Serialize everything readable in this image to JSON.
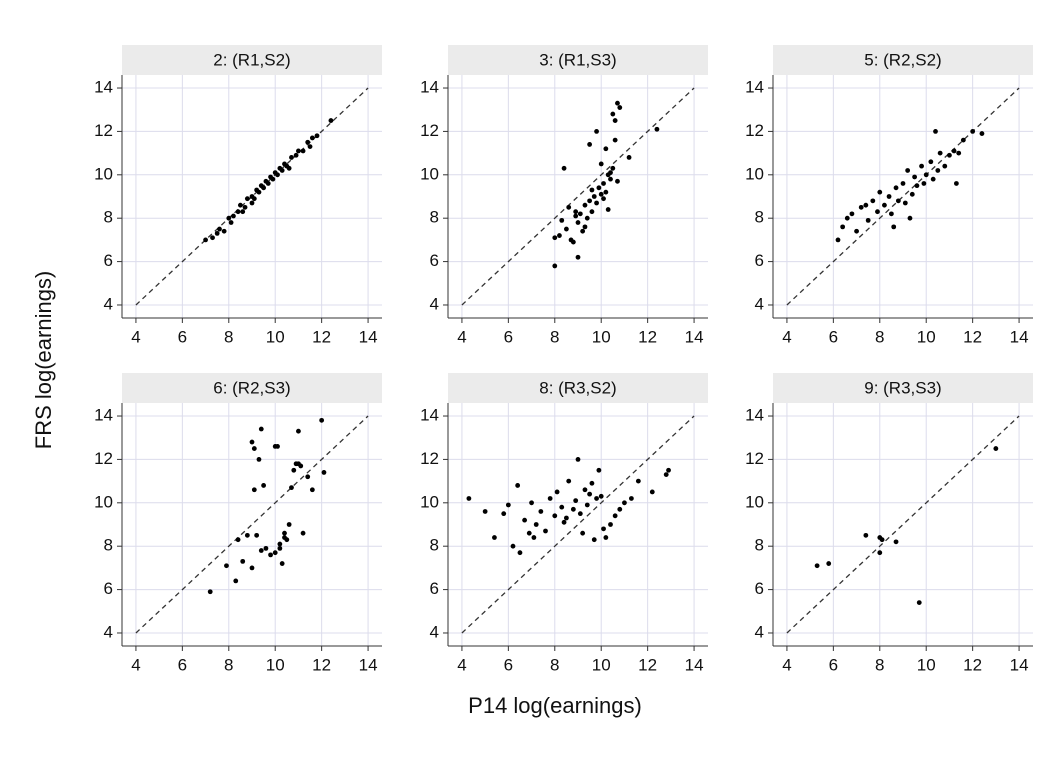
{
  "axis_titles": {
    "x": "P14 log(earnings)",
    "y": "FRS log(earnings)"
  },
  "chart_data": [
    {
      "type": "scatter",
      "title": "2: (R1,S2)",
      "color": "#000000",
      "x": [
        7.0,
        7.3,
        7.5,
        7.6,
        7.8,
        8.0,
        8.1,
        8.2,
        8.4,
        8.5,
        8.6,
        8.7,
        8.8,
        9.0,
        9.0,
        9.1,
        9.2,
        9.3,
        9.4,
        9.5,
        9.6,
        9.7,
        9.8,
        9.9,
        10.0,
        10.1,
        10.2,
        10.3,
        10.4,
        10.5,
        10.6,
        10.7,
        10.9,
        11.0,
        11.2,
        11.4,
        11.5,
        11.6,
        11.8,
        12.4
      ],
      "values": [
        7.0,
        7.1,
        7.3,
        7.5,
        7.4,
        8.0,
        7.8,
        8.1,
        8.3,
        8.6,
        8.3,
        8.5,
        8.9,
        9.0,
        8.7,
        8.9,
        9.3,
        9.2,
        9.5,
        9.4,
        9.7,
        9.6,
        9.9,
        9.8,
        10.1,
        10.0,
        10.3,
        10.2,
        10.5,
        10.4,
        10.3,
        10.8,
        10.9,
        11.1,
        11.1,
        11.5,
        11.3,
        11.7,
        11.8,
        12.5
      ],
      "xlim": [
        3.4,
        14.6
      ],
      "ylim": [
        3.4,
        14.6
      ],
      "xticks": [
        4,
        6,
        8,
        10,
        12,
        14
      ],
      "yticks": [
        4,
        6,
        8,
        10,
        12,
        14
      ],
      "grid": true,
      "reference_line": [
        4,
        14
      ]
    },
    {
      "type": "scatter",
      "title": "3: (R1,S3)",
      "color": "#000000",
      "x": [
        8.0,
        8.2,
        8.3,
        8.5,
        8.6,
        8.7,
        8.8,
        8.9,
        9.0,
        9.1,
        9.2,
        9.3,
        9.4,
        9.5,
        9.6,
        9.7,
        9.8,
        9.9,
        10.0,
        10.1,
        10.2,
        10.3,
        10.4,
        10.5,
        10.6,
        10.7,
        10.8,
        11.2,
        12.4,
        9.5,
        9.8,
        10.0,
        10.2,
        10.5,
        10.6,
        10.7,
        10.4,
        8.4,
        9.0,
        9.3,
        10.1,
        10.3,
        8.0,
        8.9,
        9.6
      ],
      "values": [
        5.8,
        7.2,
        7.9,
        7.5,
        8.5,
        7.0,
        6.9,
        8.1,
        7.8,
        8.2,
        7.4,
        8.6,
        8.0,
        8.8,
        8.3,
        9.0,
        8.7,
        9.4,
        9.1,
        9.6,
        9.2,
        10.0,
        9.8,
        10.3,
        12.5,
        13.3,
        13.1,
        10.8,
        12.1,
        11.4,
        12.0,
        10.5,
        11.2,
        12.8,
        11.6,
        9.7,
        10.1,
        10.3,
        6.2,
        7.6,
        8.9,
        8.4,
        7.1,
        8.3,
        9.3
      ],
      "xlim": [
        3.4,
        14.6
      ],
      "ylim": [
        3.4,
        14.6
      ],
      "xticks": [
        4,
        6,
        8,
        10,
        12,
        14
      ],
      "yticks": [
        4,
        6,
        8,
        10,
        12,
        14
      ],
      "grid": true,
      "reference_line": [
        4,
        14
      ]
    },
    {
      "type": "scatter",
      "title": "5: (R2,S2)",
      "color": "#000000",
      "x": [
        6.2,
        6.4,
        6.6,
        6.8,
        7.0,
        7.2,
        7.4,
        7.5,
        7.7,
        7.9,
        8.0,
        8.2,
        8.4,
        8.5,
        8.7,
        8.8,
        9.0,
        9.1,
        9.2,
        9.4,
        9.5,
        9.6,
        9.8,
        9.9,
        10.0,
        10.2,
        10.3,
        10.5,
        10.6,
        10.8,
        11.0,
        11.2,
        11.4,
        11.6,
        12.0,
        12.4,
        8.6,
        9.3,
        10.4,
        11.3
      ],
      "values": [
        7.0,
        7.6,
        8.0,
        8.2,
        7.4,
        8.5,
        8.6,
        7.9,
        8.8,
        8.3,
        9.2,
        8.6,
        9.0,
        8.2,
        9.4,
        8.8,
        9.6,
        8.7,
        10.2,
        9.1,
        9.9,
        9.5,
        10.4,
        9.6,
        10.0,
        10.6,
        9.8,
        10.2,
        11.0,
        10.4,
        10.9,
        11.1,
        11.0,
        11.6,
        12.0,
        11.9,
        7.6,
        8.0,
        12.0,
        9.6
      ],
      "xlim": [
        3.4,
        14.6
      ],
      "ylim": [
        3.4,
        14.6
      ],
      "xticks": [
        4,
        6,
        8,
        10,
        12,
        14
      ],
      "yticks": [
        4,
        6,
        8,
        10,
        12,
        14
      ],
      "grid": true,
      "reference_line": [
        4,
        14
      ]
    },
    {
      "type": "scatter",
      "title": "6: (R2,S3)",
      "color": "#000000",
      "x": [
        7.2,
        7.9,
        8.3,
        8.4,
        8.6,
        8.8,
        9.0,
        9.0,
        9.1,
        9.2,
        9.3,
        9.4,
        9.5,
        9.6,
        9.8,
        10.0,
        10.0,
        10.1,
        10.2,
        10.3,
        10.4,
        10.5,
        10.6,
        10.7,
        10.8,
        10.9,
        11.0,
        11.1,
        11.2,
        11.4,
        11.6,
        12.0,
        12.1,
        9.1,
        9.4,
        10.2,
        10.4,
        11.0
      ],
      "values": [
        5.9,
        7.1,
        6.4,
        8.3,
        7.3,
        8.5,
        12.8,
        7.0,
        12.5,
        8.5,
        12.0,
        13.4,
        10.8,
        7.9,
        7.6,
        12.6,
        7.7,
        12.6,
        8.1,
        7.2,
        8.6,
        8.3,
        9.0,
        10.7,
        11.5,
        11.8,
        13.3,
        11.7,
        8.6,
        11.2,
        10.6,
        13.8,
        11.4,
        10.6,
        7.8,
        7.9,
        8.4,
        11.8
      ],
      "xlim": [
        3.4,
        14.6
      ],
      "ylim": [
        3.4,
        14.6
      ],
      "xticks": [
        4,
        6,
        8,
        10,
        12,
        14
      ],
      "yticks": [
        4,
        6,
        8,
        10,
        12,
        14
      ],
      "grid": true,
      "reference_line": [
        4,
        14
      ]
    },
    {
      "type": "scatter",
      "title": "8: (R3,S2)",
      "color": "#000000",
      "x": [
        4.3,
        5.0,
        5.4,
        5.8,
        6.0,
        6.2,
        6.4,
        6.5,
        6.7,
        6.9,
        7.0,
        7.2,
        7.4,
        7.6,
        7.8,
        8.0,
        8.1,
        8.3,
        8.5,
        8.6,
        8.8,
        8.9,
        9.0,
        9.1,
        9.3,
        9.4,
        9.5,
        9.6,
        9.8,
        9.9,
        10.0,
        10.2,
        10.4,
        10.6,
        10.8,
        11.0,
        11.3,
        11.6,
        12.2,
        12.8,
        12.9,
        7.1,
        8.4,
        9.2,
        9.7,
        10.1
      ],
      "values": [
        10.2,
        9.6,
        8.4,
        9.5,
        9.9,
        8.0,
        10.8,
        7.7,
        9.2,
        8.6,
        10.0,
        9.0,
        9.6,
        8.7,
        10.2,
        9.4,
        10.5,
        9.8,
        9.3,
        11.0,
        9.7,
        10.1,
        12.0,
        9.5,
        10.6,
        9.9,
        10.4,
        10.9,
        10.2,
        11.5,
        10.3,
        8.4,
        9.0,
        9.4,
        9.7,
        10.0,
        10.2,
        11.0,
        10.5,
        11.3,
        11.5,
        8.4,
        9.1,
        8.6,
        8.3,
        8.8
      ],
      "xlim": [
        3.4,
        14.6
      ],
      "ylim": [
        3.4,
        14.6
      ],
      "xticks": [
        4,
        6,
        8,
        10,
        12,
        14
      ],
      "yticks": [
        4,
        6,
        8,
        10,
        12,
        14
      ],
      "grid": true,
      "reference_line": [
        4,
        14
      ]
    },
    {
      "type": "scatter",
      "title": "9: (R3,S3)",
      "color": "#000000",
      "x": [
        5.3,
        5.8,
        7.4,
        8.0,
        8.1,
        8.0,
        8.7,
        9.7,
        13.0
      ],
      "values": [
        7.1,
        7.2,
        8.5,
        8.4,
        8.3,
        7.7,
        8.2,
        5.4,
        12.5
      ],
      "xlim": [
        3.4,
        14.6
      ],
      "ylim": [
        3.4,
        14.6
      ],
      "xticks": [
        4,
        6,
        8,
        10,
        12,
        14
      ],
      "yticks": [
        4,
        6,
        8,
        10,
        12,
        14
      ],
      "grid": true,
      "reference_line": [
        4,
        14
      ]
    }
  ]
}
